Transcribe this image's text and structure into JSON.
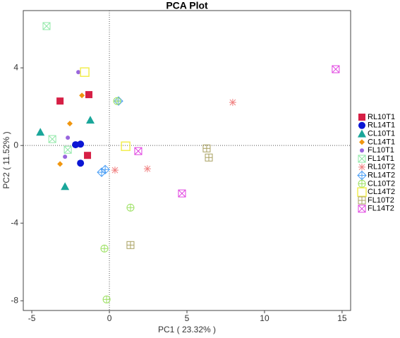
{
  "chart_data": {
    "type": "scatter",
    "title": "PCA Plot",
    "x_label": "PC1 ( 23.32% )",
    "y_label": "PC2 ( 11.52% )",
    "xlim": [
      -5.55,
      15.55
    ],
    "ylim": [
      -8.5,
      6.95
    ],
    "xticks": [
      -5,
      0,
      5,
      10,
      15
    ],
    "yticks": [
      -8,
      -4,
      0,
      4
    ],
    "zero_lines": true,
    "legend": "right",
    "series": [
      {
        "name": "RL10T1",
        "color": "#d61f45",
        "marker": "square",
        "x": [
          -3.18,
          -1.32,
          -1.41
        ],
        "y": [
          2.29,
          2.62,
          -0.51
        ]
      },
      {
        "name": "RL14T1",
        "color": "#0b16d4",
        "marker": "circle",
        "x": [
          -2.18,
          -1.86,
          -1.86
        ],
        "y": [
          0.04,
          0.07,
          -0.91
        ]
      },
      {
        "name": "CL10T1",
        "color": "#1aa69a",
        "marker": "triangle",
        "x": [
          -4.45,
          -1.23,
          -2.86
        ],
        "y": [
          0.69,
          1.31,
          -2.11
        ]
      },
      {
        "name": "CL14T1",
        "color": "#f0960f",
        "marker": "diamond",
        "x": [
          -1.77,
          -2.55,
          -3.18
        ],
        "y": [
          2.58,
          1.13,
          -0.95
        ]
      },
      {
        "name": "FL10T1",
        "color": "#9966dd",
        "marker": "dot",
        "x": [
          -2.0,
          -2.68,
          -2.86
        ],
        "y": [
          3.78,
          0.4,
          -0.58
        ]
      },
      {
        "name": "FL14T1",
        "color": "#90e8a8",
        "marker": "box-x",
        "x": [
          -4.05,
          -3.68,
          -2.68
        ],
        "y": [
          6.15,
          0.33,
          -0.22
        ]
      },
      {
        "name": "RL10T2",
        "color": "#f08080",
        "marker": "asterisk",
        "x": [
          7.95,
          2.45,
          0.36
        ],
        "y": [
          2.22,
          -1.2,
          -1.27
        ]
      },
      {
        "name": "RL14T2",
        "color": "#4a9ef5",
        "marker": "diamond-plus",
        "x": [
          0.59,
          -0.27,
          -0.5
        ],
        "y": [
          2.29,
          -1.24,
          -1.38
        ]
      },
      {
        "name": "CL10T2",
        "color": "#9be060",
        "marker": "circle-plus",
        "x": [
          0.5,
          1.36,
          -0.32,
          -0.18
        ],
        "y": [
          2.29,
          -3.2,
          -5.31,
          -7.93
        ]
      },
      {
        "name": "CL14T2",
        "color": "#f2ee50",
        "marker": "square-open",
        "x": [
          -1.59,
          1.05
        ],
        "y": [
          3.78,
          -0.04
        ]
      },
      {
        "name": "FL10T2",
        "color": "#a8a060",
        "marker": "box-plus",
        "x": [
          6.27,
          6.41,
          1.36
        ],
        "y": [
          -0.15,
          -0.62,
          -5.13
        ]
      },
      {
        "name": "FL14T2",
        "color": "#e040e0",
        "marker": "box-x",
        "x": [
          14.59,
          1.86,
          4.68
        ],
        "y": [
          3.93,
          -0.29,
          -2.47
        ]
      }
    ]
  }
}
